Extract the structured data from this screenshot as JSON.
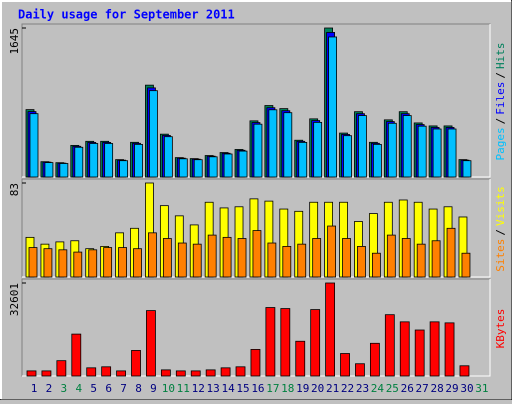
{
  "title": "Daily usage for September 2011",
  "legend_separator": "/",
  "chart_data": [
    {
      "type": "bar",
      "ylim": [
        0,
        1645
      ],
      "yticks": [
        1645
      ],
      "series": [
        {
          "name": "Hits",
          "color": "#00805c",
          "values": [
            744,
            169,
            158,
            349,
            394,
            394,
            192,
            383,
            1014,
            473,
            214,
            203,
            237,
            270,
            304,
            620,
            789,
            755,
            406,
            642,
            1645,
            485,
            721,
            383,
            631,
            721,
            597,
            564,
            564,
            192,
            null
          ]
        },
        {
          "name": "Files",
          "color": "#0000ff",
          "values": [
            722,
            164,
            153,
            339,
            382,
            382,
            186,
            372,
            984,
            459,
            208,
            197,
            230,
            262,
            295,
            601,
            765,
            732,
            394,
            623,
            1596,
            470,
            699,
            372,
            612,
            699,
            579,
            547,
            547,
            186,
            null
          ]
        },
        {
          "name": "Pages",
          "color": "#00c0ff",
          "values": [
            699,
            159,
            149,
            328,
            370,
            370,
            180,
            360,
            953,
            445,
            201,
            191,
            223,
            254,
            286,
            583,
            742,
            710,
            382,
            603,
            1546,
            456,
            678,
            360,
            593,
            678,
            561,
            530,
            530,
            180,
            null
          ]
        }
      ]
    },
    {
      "type": "bar",
      "ylim": [
        0,
        83
      ],
      "yticks": [
        83
      ],
      "series": [
        {
          "name": "Visits",
          "color": "#ffff00",
          "values": [
            35,
            29,
            31,
            32,
            25,
            27,
            39,
            43,
            83,
            63,
            54,
            46,
            66,
            61,
            62,
            69,
            67,
            60,
            58,
            66,
            66,
            66,
            49,
            56,
            66,
            68,
            66,
            60,
            62,
            53,
            null
          ]
        },
        {
          "name": "Sites",
          "color": "#ff8000",
          "values": [
            26,
            25,
            24,
            22,
            24,
            26,
            26,
            25,
            39,
            34,
            30,
            29,
            37,
            35,
            34,
            41,
            30,
            27,
            29,
            34,
            45,
            34,
            27,
            21,
            37,
            34,
            29,
            32,
            43,
            21,
            null
          ]
        }
      ]
    },
    {
      "type": "bar",
      "ylim": [
        0,
        32601
      ],
      "yticks": [
        32601
      ],
      "categories": [
        "1",
        "2",
        "3",
        "4",
        "5",
        "6",
        "7",
        "8",
        "9",
        "10",
        "11",
        "12",
        "13",
        "14",
        "15",
        "16",
        "17",
        "18",
        "19",
        "20",
        "21",
        "22",
        "23",
        "24",
        "25",
        "26",
        "27",
        "28",
        "29",
        "30",
        "31"
      ],
      "category_colors": [
        "#000080",
        "#000080",
        "#008040",
        "#008040",
        "#000080",
        "#000080",
        "#000080",
        "#000080",
        "#000080",
        "#008040",
        "#008040",
        "#000080",
        "#000080",
        "#000080",
        "#000080",
        "#000080",
        "#008040",
        "#008040",
        "#000080",
        "#000080",
        "#000080",
        "#000080",
        "#000080",
        "#008040",
        "#008040",
        "#000080",
        "#000080",
        "#000080",
        "#000080",
        "#000080",
        "#008040"
      ],
      "series": [
        {
          "name": "KBytes",
          "color": "#ff0000",
          "values": [
            1791,
            1791,
            5374,
            14688,
            2866,
            3224,
            1791,
            8956,
            22928,
            2150,
            1791,
            1791,
            2150,
            2866,
            3224,
            9315,
            24003,
            23645,
            12181,
            23286,
            32601,
            7882,
            4299,
            11464,
            21495,
            18987,
            16121,
            18987,
            18629,
            3583,
            null
          ]
        }
      ]
    }
  ]
}
